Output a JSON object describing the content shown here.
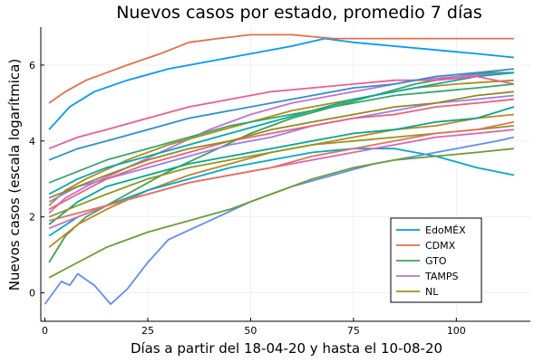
{
  "chart_data": {
    "type": "line",
    "title": "Nuevos casos por estado, promedio 7 días",
    "xlabel": "Días a partir del 18-04-20 y hasta el 10-08-20",
    "ylabel": "Nuevos casos (escala logarítmica)",
    "xlim": [
      -1,
      118
    ],
    "ylim": [
      -0.75,
      7.0
    ],
    "xticks": [
      0,
      25,
      50,
      75,
      100
    ],
    "yticks": [
      0,
      2,
      4,
      6
    ],
    "grid": true,
    "legend": {
      "position": "bottom-right"
    },
    "series": [
      {
        "name": "EdoMÉX",
        "color": "#009AFA",
        "x": [
          1,
          6,
          12,
          20,
          30,
          40,
          50,
          60,
          68,
          75,
          85,
          95,
          105,
          114
        ],
        "y": [
          4.3,
          4.9,
          5.3,
          5.6,
          5.9,
          6.1,
          6.3,
          6.5,
          6.7,
          6.6,
          6.5,
          6.4,
          6.3,
          6.2
        ]
      },
      {
        "name": "CDMX",
        "color": "#E36F47",
        "x": [
          1,
          5,
          10,
          15,
          20,
          28,
          35,
          42,
          50,
          60,
          70,
          80,
          90,
          100,
          114
        ],
        "y": [
          5.0,
          5.3,
          5.6,
          5.8,
          6.0,
          6.3,
          6.6,
          6.7,
          6.8,
          6.8,
          6.7,
          6.7,
          6.7,
          6.7,
          6.7
        ]
      },
      {
        "name": "GTO",
        "color": "#3EA44E",
        "x": [
          1,
          5,
          10,
          20,
          30,
          40,
          50,
          60,
          70,
          80,
          90,
          100,
          108,
          114
        ],
        "y": [
          0.8,
          1.5,
          2.0,
          2.6,
          3.2,
          3.7,
          4.2,
          4.6,
          4.9,
          5.2,
          5.5,
          5.7,
          5.8,
          5.8
        ]
      },
      {
        "name": "TAMPS",
        "color": "#C371D2",
        "x": [
          1,
          5,
          10,
          20,
          30,
          40,
          50,
          60,
          70,
          80,
          90,
          100,
          114
        ],
        "y": [
          2.1,
          2.5,
          2.8,
          3.3,
          3.8,
          4.3,
          4.7,
          5.0,
          5.2,
          5.4,
          5.6,
          5.7,
          5.8
        ]
      },
      {
        "name": "NL",
        "color": "#AC8D18",
        "x": [
          1,
          5,
          10,
          20,
          30,
          40,
          50,
          60,
          70,
          80,
          90,
          100,
          114
        ],
        "y": [
          2.3,
          2.7,
          3.0,
          3.5,
          3.9,
          4.2,
          4.5,
          4.8,
          5.0,
          5.2,
          5.4,
          5.5,
          5.6
        ]
      },
      {
        "name": "",
        "color": "#00A9AD",
        "x": [
          1,
          8,
          15,
          25,
          35,
          45,
          55,
          65,
          75,
          85,
          95,
          105,
          114
        ],
        "y": [
          2.6,
          3.0,
          3.3,
          3.6,
          3.9,
          4.2,
          4.5,
          4.8,
          5.1,
          5.3,
          5.5,
          5.7,
          5.8
        ]
      },
      {
        "name": "",
        "color": "#ED5D92",
        "x": [
          1,
          8,
          15,
          25,
          35,
          45,
          55,
          65,
          75,
          85,
          95,
          105,
          114
        ],
        "y": [
          3.8,
          4.1,
          4.3,
          4.6,
          4.9,
          5.1,
          5.3,
          5.4,
          5.5,
          5.6,
          5.6,
          5.7,
          5.5
        ]
      },
      {
        "name": "",
        "color": "#C68225",
        "x": [
          1,
          8,
          15,
          25,
          35,
          45,
          55,
          65,
          75,
          85,
          95,
          105,
          114
        ],
        "y": [
          1.2,
          1.8,
          2.2,
          2.7,
          3.1,
          3.4,
          3.7,
          3.9,
          4.1,
          4.3,
          4.4,
          4.6,
          4.7
        ]
      },
      {
        "name": "",
        "color": "#00A98D",
        "x": [
          1,
          8,
          15,
          25,
          35,
          45,
          55,
          65,
          75,
          85,
          95,
          105,
          114
        ],
        "y": [
          1.8,
          2.4,
          2.8,
          3.1,
          3.4,
          3.6,
          3.8,
          4.0,
          4.2,
          4.3,
          4.5,
          4.6,
          4.9
        ]
      },
      {
        "name": "",
        "color": "#8E971E",
        "x": [
          1,
          8,
          15,
          25,
          35,
          45,
          55,
          65,
          75,
          85,
          95,
          105,
          114
        ],
        "y": [
          2.0,
          2.3,
          2.6,
          3.0,
          3.3,
          3.5,
          3.7,
          3.9,
          4.0,
          4.1,
          4.2,
          4.3,
          4.4
        ]
      },
      {
        "name": "",
        "color": "#00A8CB",
        "x": [
          1,
          8,
          15,
          25,
          35,
          45,
          55,
          65,
          75,
          85,
          95,
          105,
          114
        ],
        "y": [
          1.5,
          2.0,
          2.3,
          2.7,
          3.0,
          3.3,
          3.5,
          3.7,
          3.8,
          3.8,
          3.6,
          3.3,
          3.1
        ]
      },
      {
        "name": "",
        "color": "#9B7FE9",
        "x": [
          1,
          8,
          15,
          25,
          35,
          45,
          55,
          65,
          75,
          85,
          95,
          105,
          114
        ],
        "y": [
          2.4,
          2.8,
          3.0,
          3.3,
          3.6,
          3.9,
          4.1,
          4.4,
          4.6,
          4.8,
          5.0,
          5.1,
          5.2
        ]
      },
      {
        "name": "",
        "color": "#608CF6",
        "x": [
          0,
          2,
          4,
          6,
          8,
          12,
          16,
          20,
          25,
          30,
          40,
          50,
          60,
          70,
          80,
          90,
          100,
          110,
          114
        ],
        "y": [
          -0.3,
          0.0,
          0.3,
          0.2,
          0.5,
          0.2,
          -0.3,
          0.1,
          0.8,
          1.4,
          1.9,
          2.4,
          2.8,
          3.1,
          3.4,
          3.6,
          3.8,
          4.0,
          4.1
        ]
      },
      {
        "name": "",
        "color": "#F05F73",
        "x": [
          1,
          8,
          15,
          25,
          35,
          45,
          55,
          65,
          75,
          85,
          95,
          105,
          114
        ],
        "y": [
          2.2,
          2.6,
          3.0,
          3.4,
          3.7,
          4.0,
          4.2,
          4.4,
          4.6,
          4.7,
          4.9,
          5.0,
          5.1
        ]
      },
      {
        "name": "",
        "color": "#DD64B5",
        "x": [
          1,
          8,
          15,
          25,
          35,
          45,
          55,
          65,
          75,
          85,
          95,
          105,
          114
        ],
        "y": [
          1.7,
          2.0,
          2.3,
          2.6,
          2.9,
          3.1,
          3.3,
          3.5,
          3.7,
          3.9,
          4.1,
          4.2,
          4.3
        ]
      },
      {
        "name": "",
        "color": "#6B9E32",
        "x": [
          1,
          8,
          15,
          25,
          35,
          45,
          55,
          65,
          75,
          85,
          95,
          105,
          114
        ],
        "y": [
          0.4,
          0.8,
          1.2,
          1.6,
          1.9,
          2.2,
          2.6,
          3.0,
          3.3,
          3.5,
          3.6,
          3.7,
          3.8
        ]
      },
      {
        "name": "",
        "color": "#918B1F",
        "x": [
          1,
          8,
          15,
          25,
          35,
          45,
          55,
          65,
          75,
          85,
          95,
          105,
          114
        ],
        "y": [
          2.5,
          2.8,
          3.1,
          3.5,
          3.8,
          4.0,
          4.3,
          4.5,
          4.7,
          4.9,
          5.0,
          5.2,
          5.3
        ]
      },
      {
        "name": "",
        "color": "#2E8FD1",
        "x": [
          1,
          8,
          15,
          25,
          35,
          45,
          55,
          65,
          75,
          85,
          95,
          105,
          114
        ],
        "y": [
          3.5,
          3.8,
          4.0,
          4.3,
          4.6,
          4.8,
          5.0,
          5.2,
          5.4,
          5.5,
          5.7,
          5.8,
          5.9
        ]
      },
      {
        "name": "",
        "color": "#E0745A",
        "x": [
          1,
          8,
          15,
          25,
          35,
          45,
          55,
          65,
          75,
          85,
          95,
          105,
          114
        ],
        "y": [
          1.9,
          2.1,
          2.3,
          2.6,
          2.9,
          3.1,
          3.3,
          3.6,
          3.8,
          4.0,
          4.2,
          4.3,
          4.5
        ]
      },
      {
        "name": "",
        "color": "#35A86A",
        "x": [
          1,
          8,
          15,
          25,
          35,
          45,
          55,
          65,
          75,
          85,
          95,
          105,
          114
        ],
        "y": [
          2.9,
          3.2,
          3.5,
          3.8,
          4.1,
          4.4,
          4.6,
          4.8,
          5.0,
          5.2,
          5.3,
          5.4,
          5.5
        ]
      }
    ]
  }
}
